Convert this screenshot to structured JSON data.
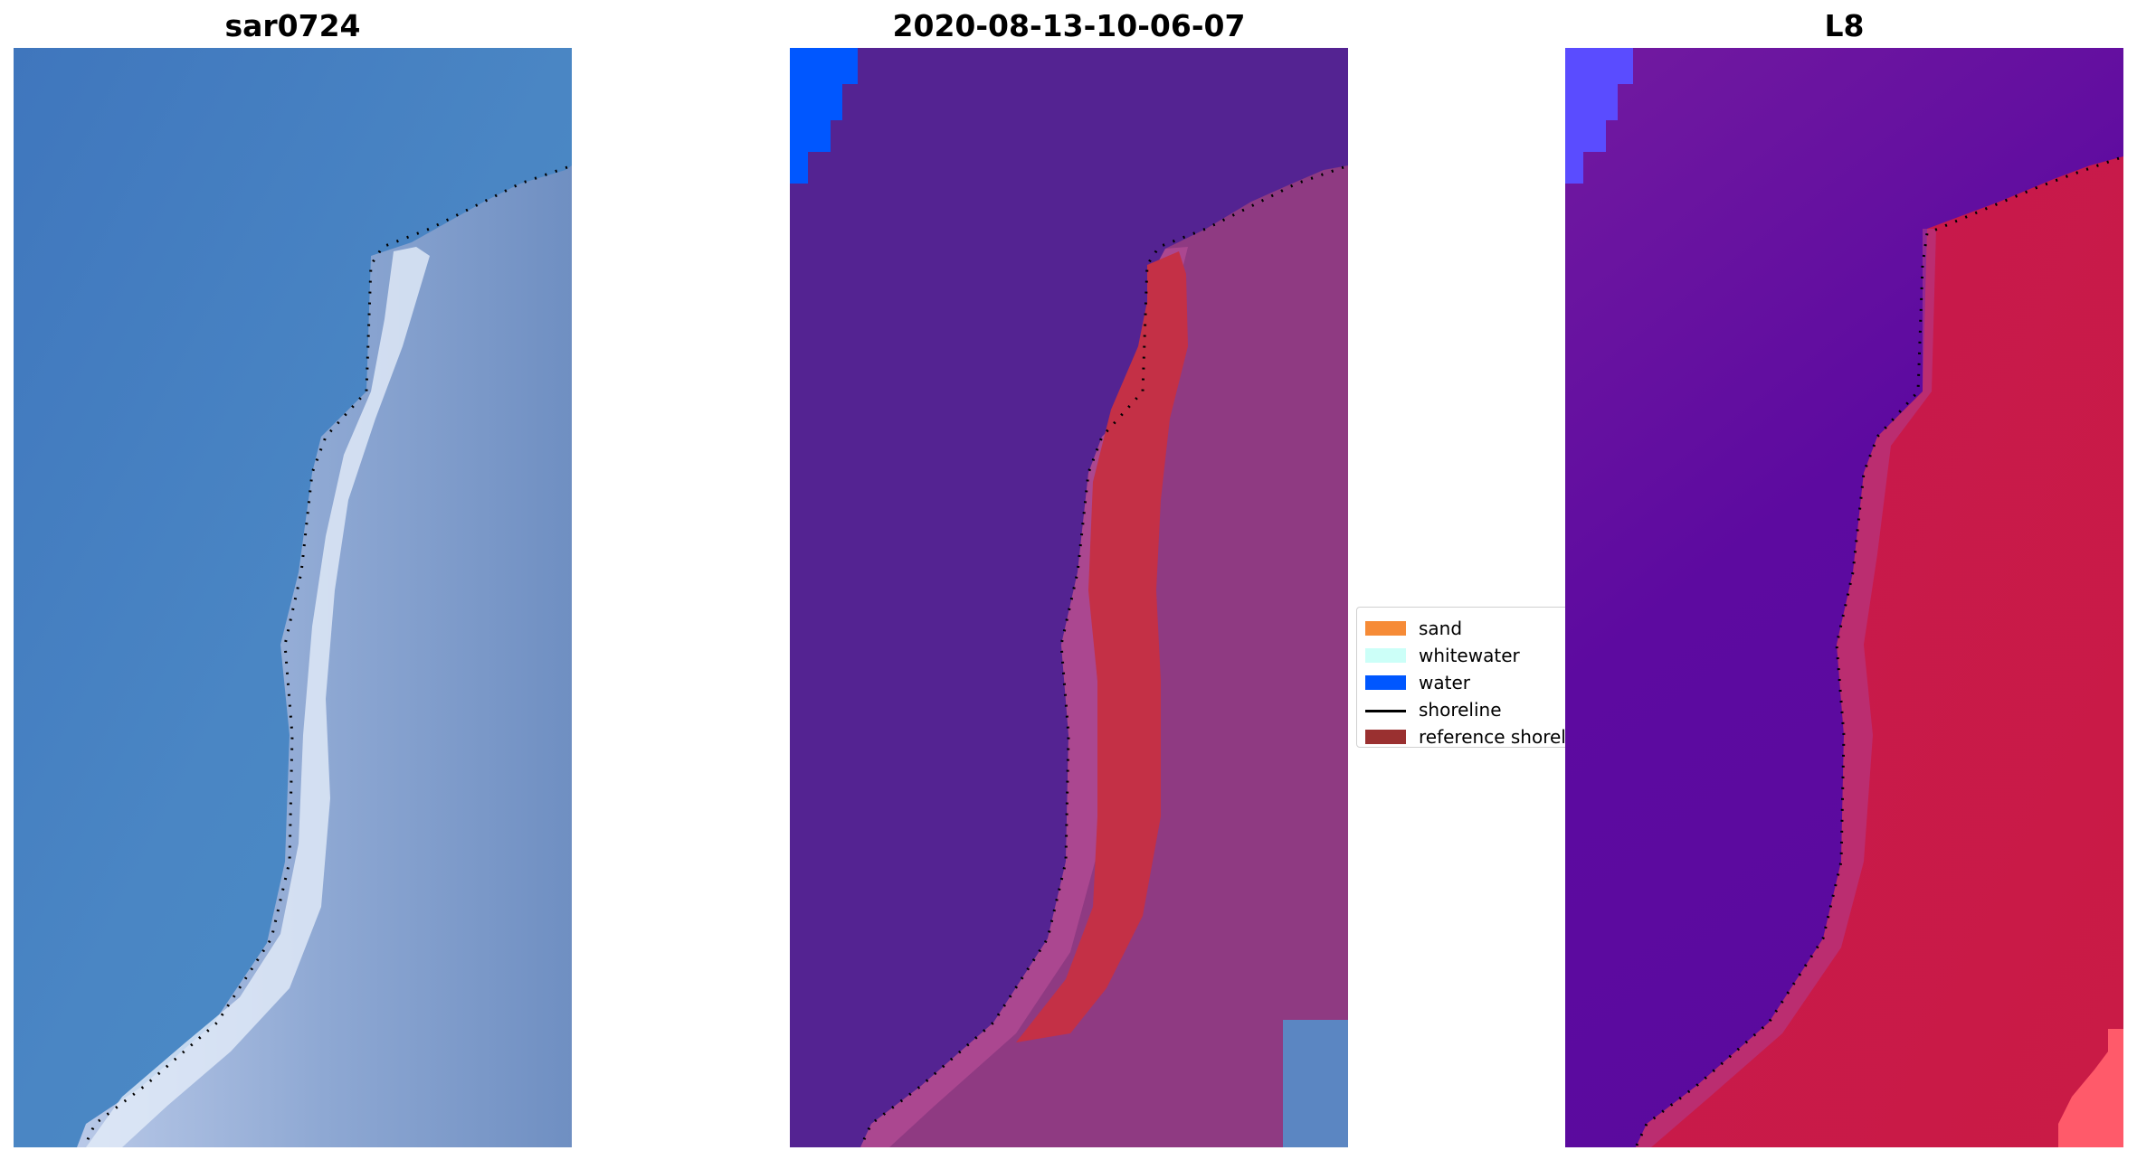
{
  "panels": [
    {
      "title": "sar0724",
      "kind": "rgb-image"
    },
    {
      "title": "2020-08-13-10-06-07",
      "kind": "classified-image"
    },
    {
      "title": "L8",
      "kind": "index-image"
    }
  ],
  "legend": {
    "placement": "center-right of middle panel",
    "items": [
      {
        "label": "sand",
        "type": "patch",
        "color": "#f68b37"
      },
      {
        "label": "whitewater",
        "type": "patch",
        "color": "#ccfff8"
      },
      {
        "label": "water",
        "type": "patch",
        "color": "#0057ff"
      },
      {
        "label": "shoreline",
        "type": "line",
        "color": "#000000"
      },
      {
        "label": "reference shoreline",
        "type": "patch",
        "color": "#9a3030"
      }
    ]
  },
  "colors": {
    "ocean_rgb": "#4a7fc0",
    "land_rgb": "#8fa9d6",
    "ocean_classified": "#542392",
    "land_classified": "#8f3a82",
    "ocean_index": "#6a1a9e",
    "land_index": "#c41847"
  }
}
